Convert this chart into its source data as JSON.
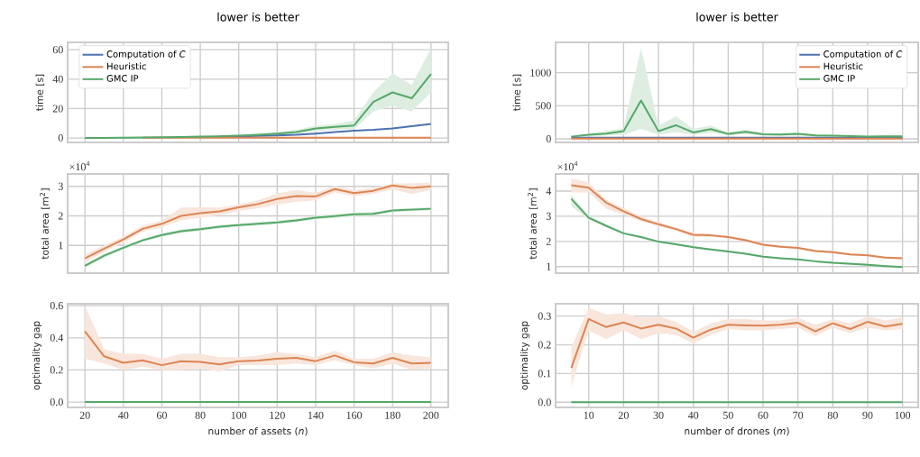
{
  "chart_data": [
    {
      "type": "line",
      "title": "lower is better",
      "ylabel": "time [s]",
      "x": [
        20,
        30,
        40,
        50,
        60,
        70,
        80,
        90,
        100,
        110,
        120,
        130,
        140,
        150,
        160,
        170,
        180,
        190,
        200
      ],
      "xlim": [
        11,
        209
      ],
      "xticks": [
        20,
        40,
        60,
        80,
        100,
        120,
        140,
        160,
        180,
        200
      ],
      "ylim": [
        -3,
        65
      ],
      "yticks": [
        0,
        20,
        40,
        60
      ],
      "grid": true,
      "legend": "top left",
      "tick_labels": "y",
      "series": [
        {
          "name": "Computation of *C*",
          "color": "#4c72b0",
          "values": [
            null,
            null,
            null,
            null,
            null,
            null,
            null,
            0.9,
            1.1,
            1.4,
            1.7,
            2.2,
            3,
            4,
            5,
            5.6,
            6.5,
            8,
            9.5
          ]
        },
        {
          "name": "Heuristic",
          "color": "#dd8452",
          "values": [
            null,
            null,
            null,
            0.2,
            0.2,
            0.2,
            0.2,
            0.2,
            0.2,
            0.2,
            0.2,
            0.2,
            0.2,
            0.2,
            0.2,
            0.2,
            0.2,
            0.2,
            0.2
          ]
        },
        {
          "name": "GMC IP",
          "color": "#55a868",
          "values": [
            0.1,
            0.1,
            0.2,
            0.3,
            0.5,
            0.7,
            0.9,
            1.2,
            1.6,
            2.2,
            3,
            4,
            6.5,
            7.5,
            8.5,
            24.5,
            31,
            27,
            43.5
          ],
          "lower": [
            0,
            0,
            0.1,
            0.2,
            0.3,
            0.5,
            0.6,
            0.8,
            1.1,
            1.5,
            2,
            2.8,
            4.5,
            5.5,
            6,
            18,
            22,
            18,
            31
          ],
          "upper": [
            0.2,
            0.2,
            0.3,
            0.4,
            0.7,
            0.9,
            1.2,
            1.6,
            2.1,
            3,
            4,
            5.5,
            8.5,
            9.5,
            12,
            31,
            44,
            36,
            61
          ]
        }
      ]
    },
    {
      "type": "line",
      "title": "lower is better",
      "ylabel": "time [s]",
      "x": [
        5,
        10,
        15,
        20,
        25,
        30,
        35,
        40,
        45,
        50,
        55,
        60,
        65,
        70,
        75,
        80,
        85,
        90,
        95,
        100
      ],
      "xlim": [
        0.5,
        104.5
      ],
      "xticks": [
        10,
        20,
        30,
        40,
        50,
        60,
        70,
        80,
        90,
        100
      ],
      "ylim": [
        -55,
        1460
      ],
      "yticks": [
        0,
        500,
        1000
      ],
      "grid": true,
      "legend": "top right",
      "tick_labels": "y",
      "series": [
        {
          "name": "Computation of *C*",
          "color": "#4c72b0",
          "values": [
            15,
            15,
            15,
            15,
            15,
            15,
            15,
            15,
            15,
            15,
            15,
            15,
            15,
            15,
            15,
            15,
            15,
            15,
            15,
            15
          ]
        },
        {
          "name": "Heuristic",
          "color": "#dd8452",
          "values": [
            3,
            3,
            3,
            3,
            3,
            3,
            3,
            3,
            3,
            3,
            3,
            3,
            3,
            3,
            3,
            3,
            3,
            3,
            3,
            3
          ]
        },
        {
          "name": "GMC IP",
          "color": "#55a868",
          "values": [
            32,
            60,
            78,
            115,
            580,
            115,
            205,
            96,
            147,
            73,
            105,
            69,
            64,
            73,
            50,
            46,
            41,
            32,
            37,
            37
          ],
          "lower": [
            20,
            40,
            50.1,
            60,
            150,
            60,
            100,
            60,
            90,
            50,
            70,
            50,
            45,
            50,
            35,
            35,
            30,
            25,
            28,
            28
          ],
          "upper": [
            50,
            80,
            120,
            160,
            1380,
            200,
            340,
            150,
            200,
            100,
            140,
            90,
            85,
            95,
            70,
            60,
            55,
            45,
            50,
            50
          ]
        }
      ]
    },
    {
      "type": "line",
      "ylabel": "total area [m$^{2}$]",
      "annotations": [
        "×10$^{4}$"
      ],
      "x": [
        20,
        30,
        40,
        50,
        60,
        70,
        80,
        90,
        100,
        110,
        120,
        130,
        140,
        150,
        160,
        170,
        180,
        190,
        200
      ],
      "xlim": [
        11,
        209
      ],
      "xticks": [
        20,
        40,
        60,
        80,
        100,
        120,
        140,
        160,
        180,
        200
      ],
      "ylim": [
        0.06,
        3.42
      ],
      "yticks": [
        1,
        2,
        3
      ],
      "grid": true,
      "tick_labels": "y",
      "series": [
        {
          "color": "#dd8452",
          "values": [
            0.56,
            0.89,
            1.2,
            1.56,
            1.73,
            2.0,
            2.09,
            2.15,
            2.29,
            2.4,
            2.57,
            2.67,
            2.66,
            2.91,
            2.77,
            2.85,
            3.03,
            2.95,
            3.0
          ],
          "lower": [
            0.42,
            0.78,
            1.1,
            1.46,
            1.62,
            1.85,
            1.94,
            2.02,
            2.17,
            2.26,
            2.38,
            2.48,
            2.53,
            2.79,
            2.66,
            2.75,
            2.9,
            2.74,
            2.88
          ],
          "upper": [
            0.7,
            1.0,
            1.3,
            1.66,
            1.85,
            2.28,
            2.29,
            2.28,
            2.39,
            2.53,
            2.76,
            2.88,
            2.78,
            3.02,
            2.88,
            2.95,
            3.1,
            3.1,
            3.13
          ]
        },
        {
          "color": "#55a868",
          "values": [
            0.31,
            0.65,
            0.92,
            1.17,
            1.35,
            1.48,
            1.55,
            1.63,
            1.69,
            1.73,
            1.78,
            1.85,
            1.94,
            1.99,
            2.05,
            2.07,
            2.18,
            2.21,
            2.24
          ],
          "lower": [
            0.24,
            0.58,
            0.86,
            1.11,
            1.29,
            1.42,
            1.49,
            1.57,
            1.63,
            1.67,
            1.72,
            1.79,
            1.88,
            1.93,
            1.99,
            2.01,
            2.12,
            2.16,
            2.18
          ],
          "upper": [
            0.38,
            0.72,
            0.98,
            1.23,
            1.41,
            1.54,
            1.61,
            1.69,
            1.75,
            1.79,
            1.84,
            1.91,
            2.0,
            2.05,
            2.11,
            2.13,
            2.24,
            2.27,
            2.3
          ]
        }
      ]
    },
    {
      "type": "line",
      "ylabel": "total area [m$^{2}$]",
      "annotations": [
        "×10$^{4}$"
      ],
      "x": [
        5,
        10,
        15,
        20,
        25,
        30,
        35,
        40,
        45,
        50,
        55,
        60,
        65,
        70,
        75,
        80,
        85,
        90,
        95,
        100
      ],
      "xlim": [
        0.5,
        104.5
      ],
      "xticks": [
        10,
        20,
        30,
        40,
        50,
        60,
        70,
        80,
        90,
        100
      ],
      "ylim": [
        0.74,
        4.68
      ],
      "yticks": [
        1,
        2,
        3,
        4
      ],
      "grid": true,
      "tick_labels": "y",
      "series": [
        {
          "color": "#dd8452",
          "values": [
            4.23,
            4.13,
            3.54,
            3.2,
            2.89,
            2.68,
            2.49,
            2.26,
            2.24,
            2.17,
            2.05,
            1.87,
            1.79,
            1.74,
            1.62,
            1.57,
            1.48,
            1.45,
            1.36,
            1.33
          ],
          "lower": [
            3.95,
            3.95,
            3.3,
            3.06,
            2.8,
            2.6,
            2.42,
            2.18,
            2.18,
            2.12,
            2.0,
            1.83,
            1.75,
            1.7,
            1.58,
            1.53,
            1.44,
            1.41,
            1.32,
            1.29
          ],
          "upper": [
            4.5,
            4.35,
            3.65,
            3.33,
            2.99,
            2.76,
            2.56,
            2.34,
            2.31,
            2.23,
            2.11,
            1.92,
            1.84,
            1.79,
            1.66,
            1.62,
            1.52,
            1.49,
            1.4,
            1.37
          ]
        },
        {
          "color": "#55a868",
          "values": [
            3.69,
            2.94,
            2.62,
            2.32,
            2.17,
            1.99,
            1.89,
            1.77,
            1.68,
            1.6,
            1.51,
            1.39,
            1.33,
            1.29,
            1.21,
            1.15,
            1.11,
            1.07,
            1.02,
            0.98
          ],
          "lower": [
            3.4,
            2.86,
            2.57,
            2.28,
            2.13,
            1.95,
            1.85,
            1.73,
            1.64,
            1.56,
            1.47,
            1.35,
            1.29,
            1.25,
            1.17,
            1.11,
            1.07,
            1.03,
            0.98,
            0.94
          ],
          "upper": [
            3.85,
            3.02,
            2.67,
            2.36,
            2.21,
            2.03,
            1.93,
            1.81,
            1.72,
            1.64,
            1.55,
            1.43,
            1.37,
            1.33,
            1.25,
            1.19,
            1.15,
            1.11,
            1.06,
            1.02
          ]
        }
      ]
    },
    {
      "type": "line",
      "ylabel": "optimality gap",
      "xlabel": "number of assets (*n*)",
      "x": [
        20,
        30,
        40,
        50,
        60,
        70,
        80,
        90,
        100,
        110,
        120,
        130,
        140,
        150,
        160,
        170,
        180,
        190,
        200
      ],
      "xlim": [
        11,
        209
      ],
      "xticks": [
        20,
        40,
        60,
        80,
        100,
        120,
        140,
        160,
        180,
        200
      ],
      "ylim": [
        -0.033,
        0.612
      ],
      "yticks": [
        {
          "value": 0,
          "label": "0.0"
        },
        {
          "value": 0.2,
          "label": "0.2"
        },
        {
          "value": 0.4,
          "label": "0.4"
        },
        {
          "value": 0.6,
          "label": "0.6"
        }
      ],
      "grid": true,
      "series": [
        {
          "color": "#dd8452",
          "values": [
            0.44,
            0.285,
            0.245,
            0.26,
            0.23,
            0.255,
            0.25,
            0.235,
            0.255,
            0.258,
            0.27,
            0.275,
            0.255,
            0.29,
            0.248,
            0.24,
            0.275,
            0.24,
            0.245
          ],
          "lower": [
            0.27,
            0.24,
            0.2,
            0.22,
            0.2,
            0.2,
            0.21,
            0.19,
            0.23,
            0.231,
            0.23,
            0.24,
            0.23,
            0.26,
            0.23,
            0.21,
            0.24,
            0.2,
            0.21
          ],
          "upper": [
            0.6,
            0.33,
            0.3,
            0.3,
            0.27,
            0.3,
            0.3,
            0.28,
            0.28,
            0.29,
            0.31,
            0.3,
            0.28,
            0.32,
            0.27,
            0.27,
            0.31,
            0.29,
            0.28
          ]
        },
        {
          "color": "#55a868",
          "values": [
            0,
            0,
            0,
            0,
            0,
            0,
            0,
            0,
            0,
            0,
            0,
            0,
            0,
            0,
            0,
            0,
            0,
            0,
            0
          ]
        }
      ]
    },
    {
      "type": "line",
      "ylabel": "optimality gap",
      "xlabel": "number of drones (*m*)",
      "x": [
        5,
        10,
        15,
        20,
        25,
        30,
        35,
        40,
        45,
        50,
        55,
        60,
        65,
        70,
        75,
        80,
        85,
        90,
        95,
        100
      ],
      "xlim": [
        0.5,
        104.5
      ],
      "xticks": [
        10,
        20,
        30,
        40,
        50,
        60,
        70,
        80,
        90,
        100
      ],
      "ylim": [
        -0.018,
        0.343
      ],
      "yticks": [
        {
          "value": 0,
          "label": "0.0"
        },
        {
          "value": 0.1,
          "label": "0.1"
        },
        {
          "value": 0.2,
          "label": "0.2"
        },
        {
          "value": 0.3,
          "label": "0.3"
        }
      ],
      "grid": true,
      "series": [
        {
          "color": "#dd8452",
          "values": [
            0.12,
            0.29,
            0.262,
            0.278,
            0.257,
            0.27,
            0.257,
            0.225,
            0.253,
            0.27,
            0.268,
            0.267,
            0.27,
            0.277,
            0.247,
            0.275,
            0.255,
            0.28,
            0.264,
            0.273
          ],
          "lower": [
            0.055,
            0.25,
            0.22,
            0.25,
            0.22,
            0.24,
            0.235,
            0.205,
            0.235,
            0.255,
            0.25,
            0.25,
            0.255,
            0.26,
            0.23,
            0.26,
            0.24,
            0.26,
            0.25,
            0.255
          ],
          "upper": [
            0.19,
            0.33,
            0.305,
            0.31,
            0.295,
            0.3,
            0.28,
            0.245,
            0.275,
            0.29,
            0.29,
            0.285,
            0.285,
            0.295,
            0.27,
            0.29,
            0.275,
            0.3,
            0.285,
            0.295
          ]
        },
        {
          "color": "#55a868",
          "values": [
            0,
            0,
            0,
            0,
            0,
            0,
            0,
            0,
            0,
            0,
            0,
            0,
            0,
            0,
            0,
            0,
            0,
            0,
            0,
            0
          ]
        }
      ]
    }
  ]
}
